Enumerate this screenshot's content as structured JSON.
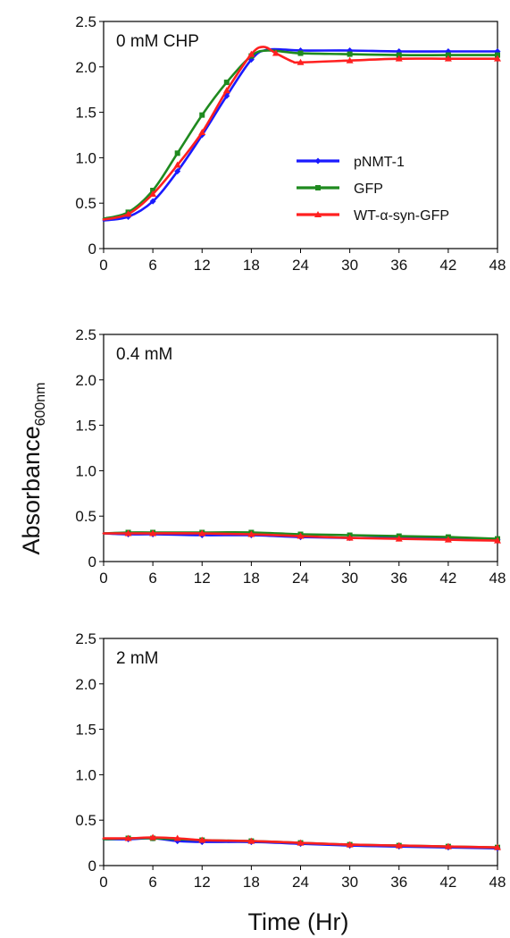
{
  "chart_data": [
    {
      "type": "line",
      "panel_label": "0 mM CHP",
      "x_ticks": [
        "0",
        "6",
        "12",
        "18",
        "24",
        "30",
        "36",
        "42",
        "48"
      ],
      "y_ticks": [
        "0",
        "0.5",
        "1.0",
        "1.5",
        "2.0",
        "2.5"
      ],
      "xlim": [
        0,
        48
      ],
      "ylim": [
        0,
        2.5
      ],
      "legend": "center-right",
      "series": [
        {
          "name": "pNMT-1",
          "color": "#1a1aff",
          "points": [
            [
              0,
              0.31
            ],
            [
              3,
              0.35
            ],
            [
              6,
              0.52
            ],
            [
              9,
              0.85
            ],
            [
              12,
              1.25
            ],
            [
              15,
              1.68
            ],
            [
              18,
              2.08
            ],
            [
              20,
              2.19
            ],
            [
              24,
              2.18
            ],
            [
              30,
              2.18
            ],
            [
              36,
              2.17
            ],
            [
              42,
              2.17
            ],
            [
              48,
              2.17
            ]
          ]
        },
        {
          "name": "GFP",
          "color": "#1f8a1f",
          "points": [
            [
              0,
              0.33
            ],
            [
              3,
              0.4
            ],
            [
              6,
              0.64
            ],
            [
              9,
              1.05
            ],
            [
              12,
              1.47
            ],
            [
              15,
              1.83
            ],
            [
              18,
              2.12
            ],
            [
              20,
              2.18
            ],
            [
              24,
              2.15
            ],
            [
              30,
              2.14
            ],
            [
              36,
              2.13
            ],
            [
              42,
              2.13
            ],
            [
              48,
              2.13
            ]
          ]
        },
        {
          "name": "WT-α-syn-GFP",
          "color": "#ff2020",
          "points": [
            [
              0,
              0.32
            ],
            [
              3,
              0.38
            ],
            [
              6,
              0.6
            ],
            [
              9,
              0.92
            ],
            [
              12,
              1.28
            ],
            [
              15,
              1.74
            ],
            [
              18,
              2.14
            ],
            [
              19.5,
              2.22
            ],
            [
              21,
              2.15
            ],
            [
              23,
              2.06
            ],
            [
              24,
              2.05
            ],
            [
              30,
              2.07
            ],
            [
              36,
              2.09
            ],
            [
              42,
              2.09
            ],
            [
              48,
              2.09
            ]
          ]
        }
      ]
    },
    {
      "type": "line",
      "panel_label": "0.4 mM",
      "x_ticks": [
        "0",
        "6",
        "12",
        "18",
        "24",
        "30",
        "36",
        "42",
        "48"
      ],
      "y_ticks": [
        "0",
        "0.5",
        "1.0",
        "1.5",
        "2.0",
        "2.5"
      ],
      "xlim": [
        0,
        48
      ],
      "ylim": [
        0,
        2.5
      ],
      "series": [
        {
          "name": "pNMT-1",
          "color": "#1a1aff",
          "points": [
            [
              0,
              0.31
            ],
            [
              3,
              0.3
            ],
            [
              6,
              0.3
            ],
            [
              12,
              0.29
            ],
            [
              18,
              0.29
            ],
            [
              24,
              0.27
            ],
            [
              30,
              0.26
            ],
            [
              36,
              0.26
            ],
            [
              42,
              0.25
            ],
            [
              48,
              0.24
            ]
          ]
        },
        {
          "name": "GFP",
          "color": "#1f8a1f",
          "points": [
            [
              0,
              0.31
            ],
            [
              3,
              0.32
            ],
            [
              6,
              0.32
            ],
            [
              12,
              0.32
            ],
            [
              18,
              0.32
            ],
            [
              24,
              0.3
            ],
            [
              30,
              0.29
            ],
            [
              36,
              0.28
            ],
            [
              42,
              0.27
            ],
            [
              48,
              0.25
            ]
          ]
        },
        {
          "name": "WT-α-syn-GFP",
          "color": "#ff2020",
          "points": [
            [
              0,
              0.31
            ],
            [
              3,
              0.31
            ],
            [
              6,
              0.31
            ],
            [
              12,
              0.31
            ],
            [
              18,
              0.3
            ],
            [
              24,
              0.28
            ],
            [
              30,
              0.26
            ],
            [
              36,
              0.25
            ],
            [
              42,
              0.24
            ],
            [
              48,
              0.23
            ]
          ]
        }
      ]
    },
    {
      "type": "line",
      "panel_label": "2 mM",
      "x_ticks": [
        "0",
        "6",
        "12",
        "18",
        "24",
        "30",
        "36",
        "42",
        "48"
      ],
      "y_ticks": [
        "0",
        "0.5",
        "1.0",
        "1.5",
        "2.0",
        "2.5"
      ],
      "xlim": [
        0,
        48
      ],
      "ylim": [
        0,
        2.5
      ],
      "series": [
        {
          "name": "pNMT-1",
          "color": "#1a1aff",
          "points": [
            [
              0,
              0.29
            ],
            [
              3,
              0.29
            ],
            [
              6,
              0.3
            ],
            [
              9,
              0.27
            ],
            [
              12,
              0.26
            ],
            [
              18,
              0.26
            ],
            [
              24,
              0.24
            ],
            [
              30,
              0.22
            ],
            [
              36,
              0.21
            ],
            [
              42,
              0.2
            ],
            [
              48,
              0.19
            ]
          ]
        },
        {
          "name": "GFP",
          "color": "#1f8a1f",
          "points": [
            [
              0,
              0.29
            ],
            [
              3,
              0.3
            ],
            [
              6,
              0.3
            ],
            [
              12,
              0.28
            ],
            [
              18,
              0.27
            ],
            [
              24,
              0.25
            ],
            [
              30,
              0.23
            ],
            [
              36,
              0.22
            ],
            [
              42,
              0.21
            ],
            [
              48,
              0.2
            ]
          ]
        },
        {
          "name": "WT-α-syn-GFP",
          "color": "#ff2020",
          "points": [
            [
              0,
              0.3
            ],
            [
              3,
              0.3
            ],
            [
              6,
              0.31
            ],
            [
              9,
              0.3
            ],
            [
              12,
              0.28
            ],
            [
              18,
              0.27
            ],
            [
              24,
              0.25
            ],
            [
              30,
              0.23
            ],
            [
              36,
              0.22
            ],
            [
              42,
              0.21
            ],
            [
              48,
              0.2
            ]
          ]
        }
      ]
    }
  ],
  "ylabel": "Absorbance",
  "ylabel_sub": "600nm",
  "xlabel": "Time (Hr)"
}
